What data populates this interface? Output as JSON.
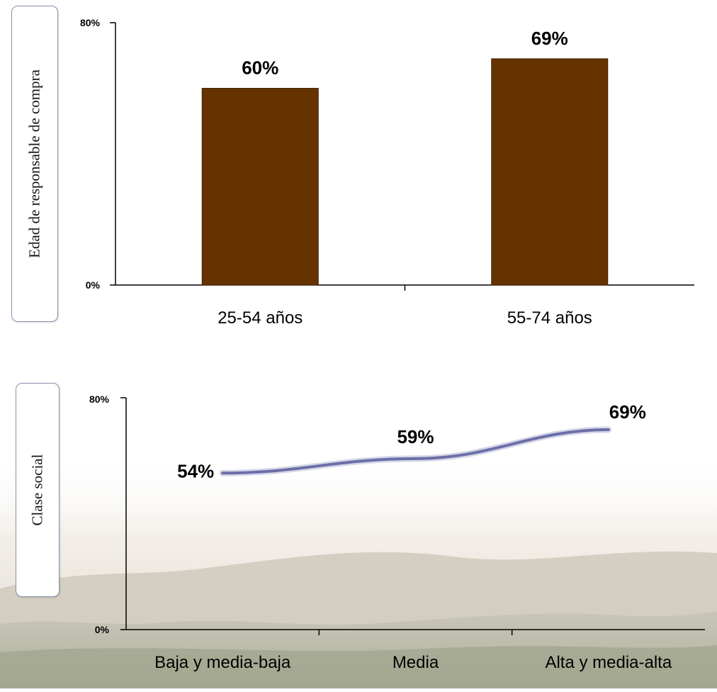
{
  "chart_data": [
    {
      "type": "bar",
      "ylabel": "Edad de responsable de compra",
      "categories": [
        "25-54 años",
        "55-74 años"
      ],
      "values": [
        60,
        69
      ],
      "data_labels": [
        "60%",
        "69%"
      ],
      "ylim": [
        0,
        80
      ],
      "y_ticks": [
        "0%",
        "80%"
      ],
      "bar_color": "#663300",
      "grid": false,
      "legend": "none"
    },
    {
      "type": "line",
      "ylabel": "Clase social",
      "categories": [
        "Baja y media-baja",
        "Media",
        "Alta y media-alta"
      ],
      "values": [
        54,
        59,
        69
      ],
      "data_labels": [
        "54%",
        "59%",
        "69%"
      ],
      "ylim": [
        0,
        80
      ],
      "y_ticks": [
        "0%",
        "80%"
      ],
      "line_color": "#6b6fa8",
      "grid": false,
      "legend": "none"
    }
  ]
}
